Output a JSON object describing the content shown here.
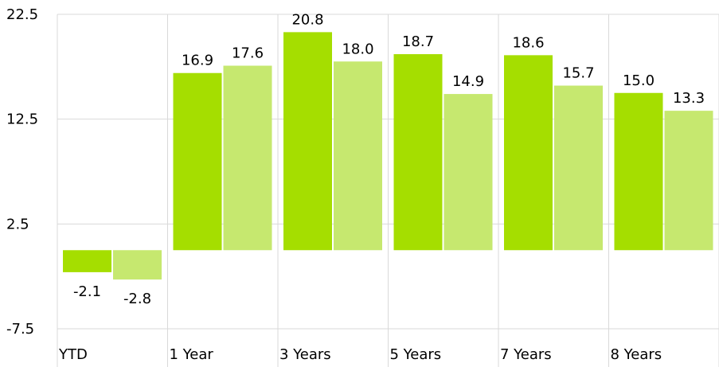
{
  "chart_data": {
    "type": "bar",
    "categories": [
      "YTD",
      "1 Year",
      "3 Years",
      "5 Years",
      "7 Years",
      "8 Years"
    ],
    "series": [
      {
        "values": [
          -2.1,
          16.9,
          20.8,
          18.7,
          18.6,
          15.0
        ],
        "labels": [
          "-2.1",
          "16.9",
          "20.8",
          "18.7",
          "18.6",
          "15.0"
        ],
        "color": "#a5de00"
      },
      {
        "values": [
          -2.8,
          17.6,
          18.0,
          14.9,
          15.7,
          13.3
        ],
        "labels": [
          "-2.8",
          "17.6",
          "18.0",
          "14.9",
          "15.7",
          "13.3"
        ],
        "color": "#c6e86f"
      }
    ],
    "y_ticks": [
      22.5,
      12.5,
      2.5,
      -7.5
    ],
    "y_tick_labels": [
      "22.5",
      "12.5",
      "2.5",
      "-7.5"
    ],
    "ylim": [
      -7.5,
      22.5
    ],
    "grid": true,
    "legend": "none"
  }
}
